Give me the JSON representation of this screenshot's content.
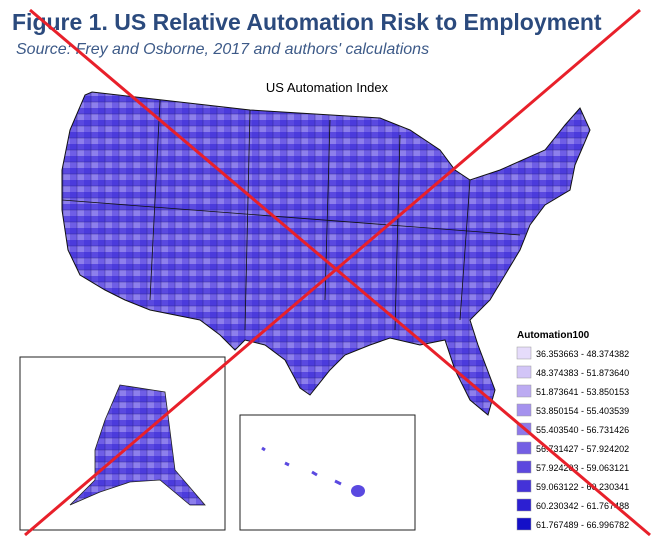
{
  "header": {
    "title": "Figure 1. US Relative Automation Risk to Employment",
    "subtitle": "Source: Frey and Osborne, 2017 and authors' calculations"
  },
  "map": {
    "title": "US Automation Index",
    "legend": {
      "title": "Automation100",
      "items": [
        {
          "label": "36.353663 - 48.374382",
          "color": "#e6dcfb"
        },
        {
          "label": "48.374383 - 51.873640",
          "color": "#d2c5f7"
        },
        {
          "label": "51.873641 - 53.850153",
          "color": "#bcabf2"
        },
        {
          "label": "53.850154 - 55.403539",
          "color": "#a592ee"
        },
        {
          "label": "55.403540 - 56.731426",
          "color": "#8d78ea"
        },
        {
          "label": "56.731427 - 57.924202",
          "color": "#745fe4"
        },
        {
          "label": "57.924203 - 59.063121",
          "color": "#5c48de"
        },
        {
          "label": "59.063122 - 60.230341",
          "color": "#4432d8"
        },
        {
          "label": "60.230342 - 61.767488",
          "color": "#2c1fd2"
        },
        {
          "label": "61.767489 - 66.996782",
          "color": "#1410c8"
        }
      ]
    }
  }
}
